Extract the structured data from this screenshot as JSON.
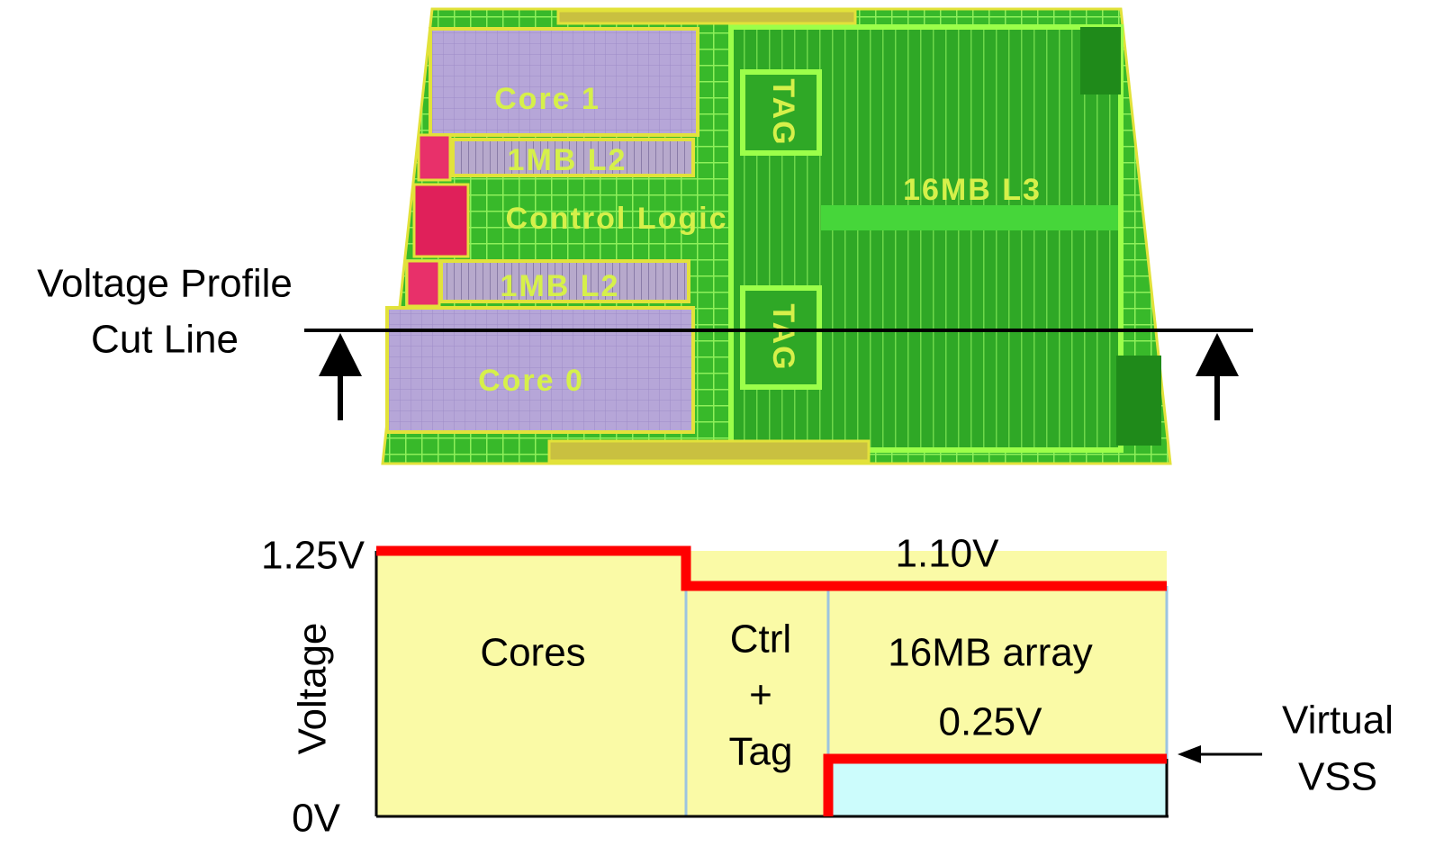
{
  "die": {
    "labels": {
      "core1": "Core 1",
      "l2_top": "1MB L2",
      "control": "Control Logic",
      "l2_bottom": "1MB L2",
      "core0": "Core 0",
      "tag_top": "TAG",
      "tag_bottom": "TAG",
      "l3": "16MB L3"
    }
  },
  "cut_line": {
    "label_line1": "Voltage Profile",
    "label_line2": "Cut Line"
  },
  "profile": {
    "axis_label": "Voltage",
    "top_level": "1.25V",
    "zero": "0V",
    "mid_level": "1.10V",
    "virtual_level": "0.25V",
    "regions": {
      "cores": "Cores",
      "ctrl_line1": "Ctrl",
      "ctrl_line2": "+",
      "ctrl_line3": "Tag",
      "array": "16MB array"
    },
    "virtual_vss_line1": "Virtual",
    "virtual_vss_line2": "VSS"
  }
}
